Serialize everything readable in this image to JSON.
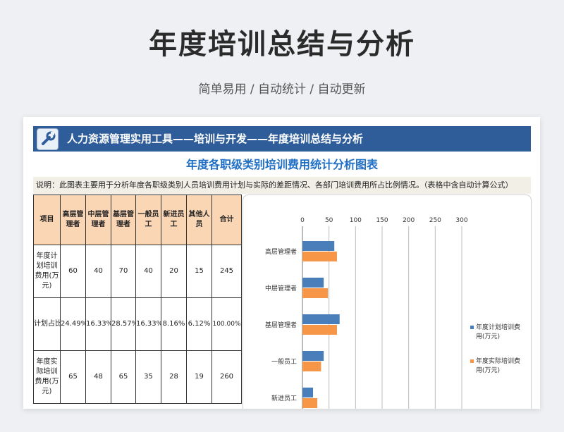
{
  "page": {
    "title": "年度培训总结与分析",
    "subtitle": "简单易用 / 自动统计 / 自动更新"
  },
  "sheet": {
    "banner_text": "人力资源管理实用工具——培训与开发——年度培训总结与分析",
    "chart_title": "年度各职级类别培训费用统计分析图表",
    "description": "说明：此图表主要用于分析年度各职级类别人员培训费用计划与实际的差距情况、各部门培训费用所占比例情况。（表格中含自动计算公式）"
  },
  "table": {
    "headers": [
      "项目",
      "高层管理者",
      "中层管理者",
      "基层管理者",
      "一般员工",
      "新进员工",
      "其他人员",
      "合计"
    ],
    "rows": [
      [
        "年度计划培训费用(万元)",
        "60",
        "40",
        "70",
        "40",
        "20",
        "15",
        "245"
      ],
      [
        "计划占比",
        "24.49%",
        "16.33%",
        "28.57%",
        "16.33%",
        "8.16%",
        "6.12%",
        "100.00%"
      ],
      [
        "年度实际培训费用(万元)",
        "65",
        "48",
        "65",
        "35",
        "28",
        "19",
        "260"
      ]
    ]
  },
  "chart_data": {
    "type": "bar",
    "orientation": "horizontal",
    "categories": [
      "高层管理者",
      "中层管理者",
      "基层管理者",
      "一般员工",
      "新进员工"
    ],
    "series": [
      {
        "name": "年度计划培训费用(万元)",
        "values": [
          60,
          40,
          70,
          40,
          20
        ]
      },
      {
        "name": "年度实际培训费用(万元)",
        "values": [
          65,
          48,
          65,
          35,
          28
        ]
      }
    ],
    "xlim": [
      0,
      300
    ],
    "ticks": [
      0,
      50,
      100,
      150,
      200,
      250,
      300
    ],
    "tick_labels": [
      "0",
      "50",
      "100",
      "150",
      "200",
      "250",
      "300"
    ],
    "grid": true,
    "legend": "right",
    "colors": [
      "#4a7ebb",
      "#f79646"
    ]
  },
  "icons": {
    "banner_icon": "wrench-icon"
  },
  "colors": {
    "banner": "#2e5d9a",
    "chart_title": "#1f6fc5",
    "header_fill": "#fbd6b5"
  }
}
